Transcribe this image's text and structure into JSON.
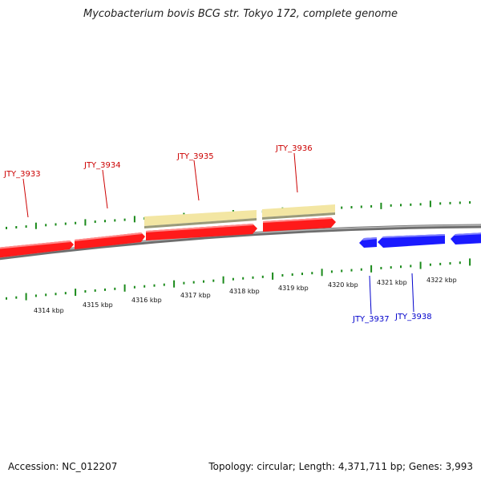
{
  "title": "Mycobacterium bovis BCG str. Tokyo 172, complete genome",
  "footer": {
    "accession": "Accession: NC_012207",
    "stats": "Topology: circular; Length: 4,371,711 bp; Genes: 3,993"
  },
  "colors": {
    "forward_gene": "#ff0000",
    "reverse_gene": "#0000ff",
    "feature_band": "#f3e6a3",
    "backbone": "#808080",
    "ticks": "#1a8a1a"
  },
  "gene_labels": {
    "forward": [
      "JTY_3933",
      "JTY_3934",
      "JTY_3935",
      "JTY_3936"
    ],
    "reverse": [
      "JTY_3937",
      "JTY_3938"
    ]
  },
  "scale_labels": [
    "4314 kbp",
    "4315 kbp",
    "4316 kbp",
    "4317 kbp",
    "4318 kbp",
    "4319 kbp",
    "4320 kbp",
    "4321 kbp",
    "4322 kbp"
  ]
}
